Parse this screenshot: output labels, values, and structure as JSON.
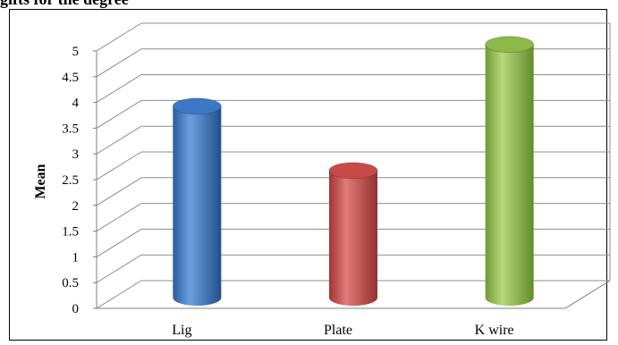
{
  "header": {
    "partial_heading": "gifts for the degree"
  },
  "chart_data": {
    "type": "bar",
    "categories": [
      "Lig",
      "Plate",
      "K wire"
    ],
    "values": [
      3.7,
      2.45,
      4.9
    ],
    "colors": [
      "#3d78c6",
      "#c84a48",
      "#8db84a"
    ],
    "title": "",
    "xlabel": "",
    "ylabel": "Mean",
    "ylim": [
      0,
      5
    ],
    "yticks": [
      "0",
      "0.5",
      "1",
      "1.5",
      "2",
      "2.5",
      "3",
      "3.5",
      "4",
      "4.5",
      "5"
    ],
    "grid": true,
    "legend": "none",
    "style": "3d-cylinder"
  }
}
